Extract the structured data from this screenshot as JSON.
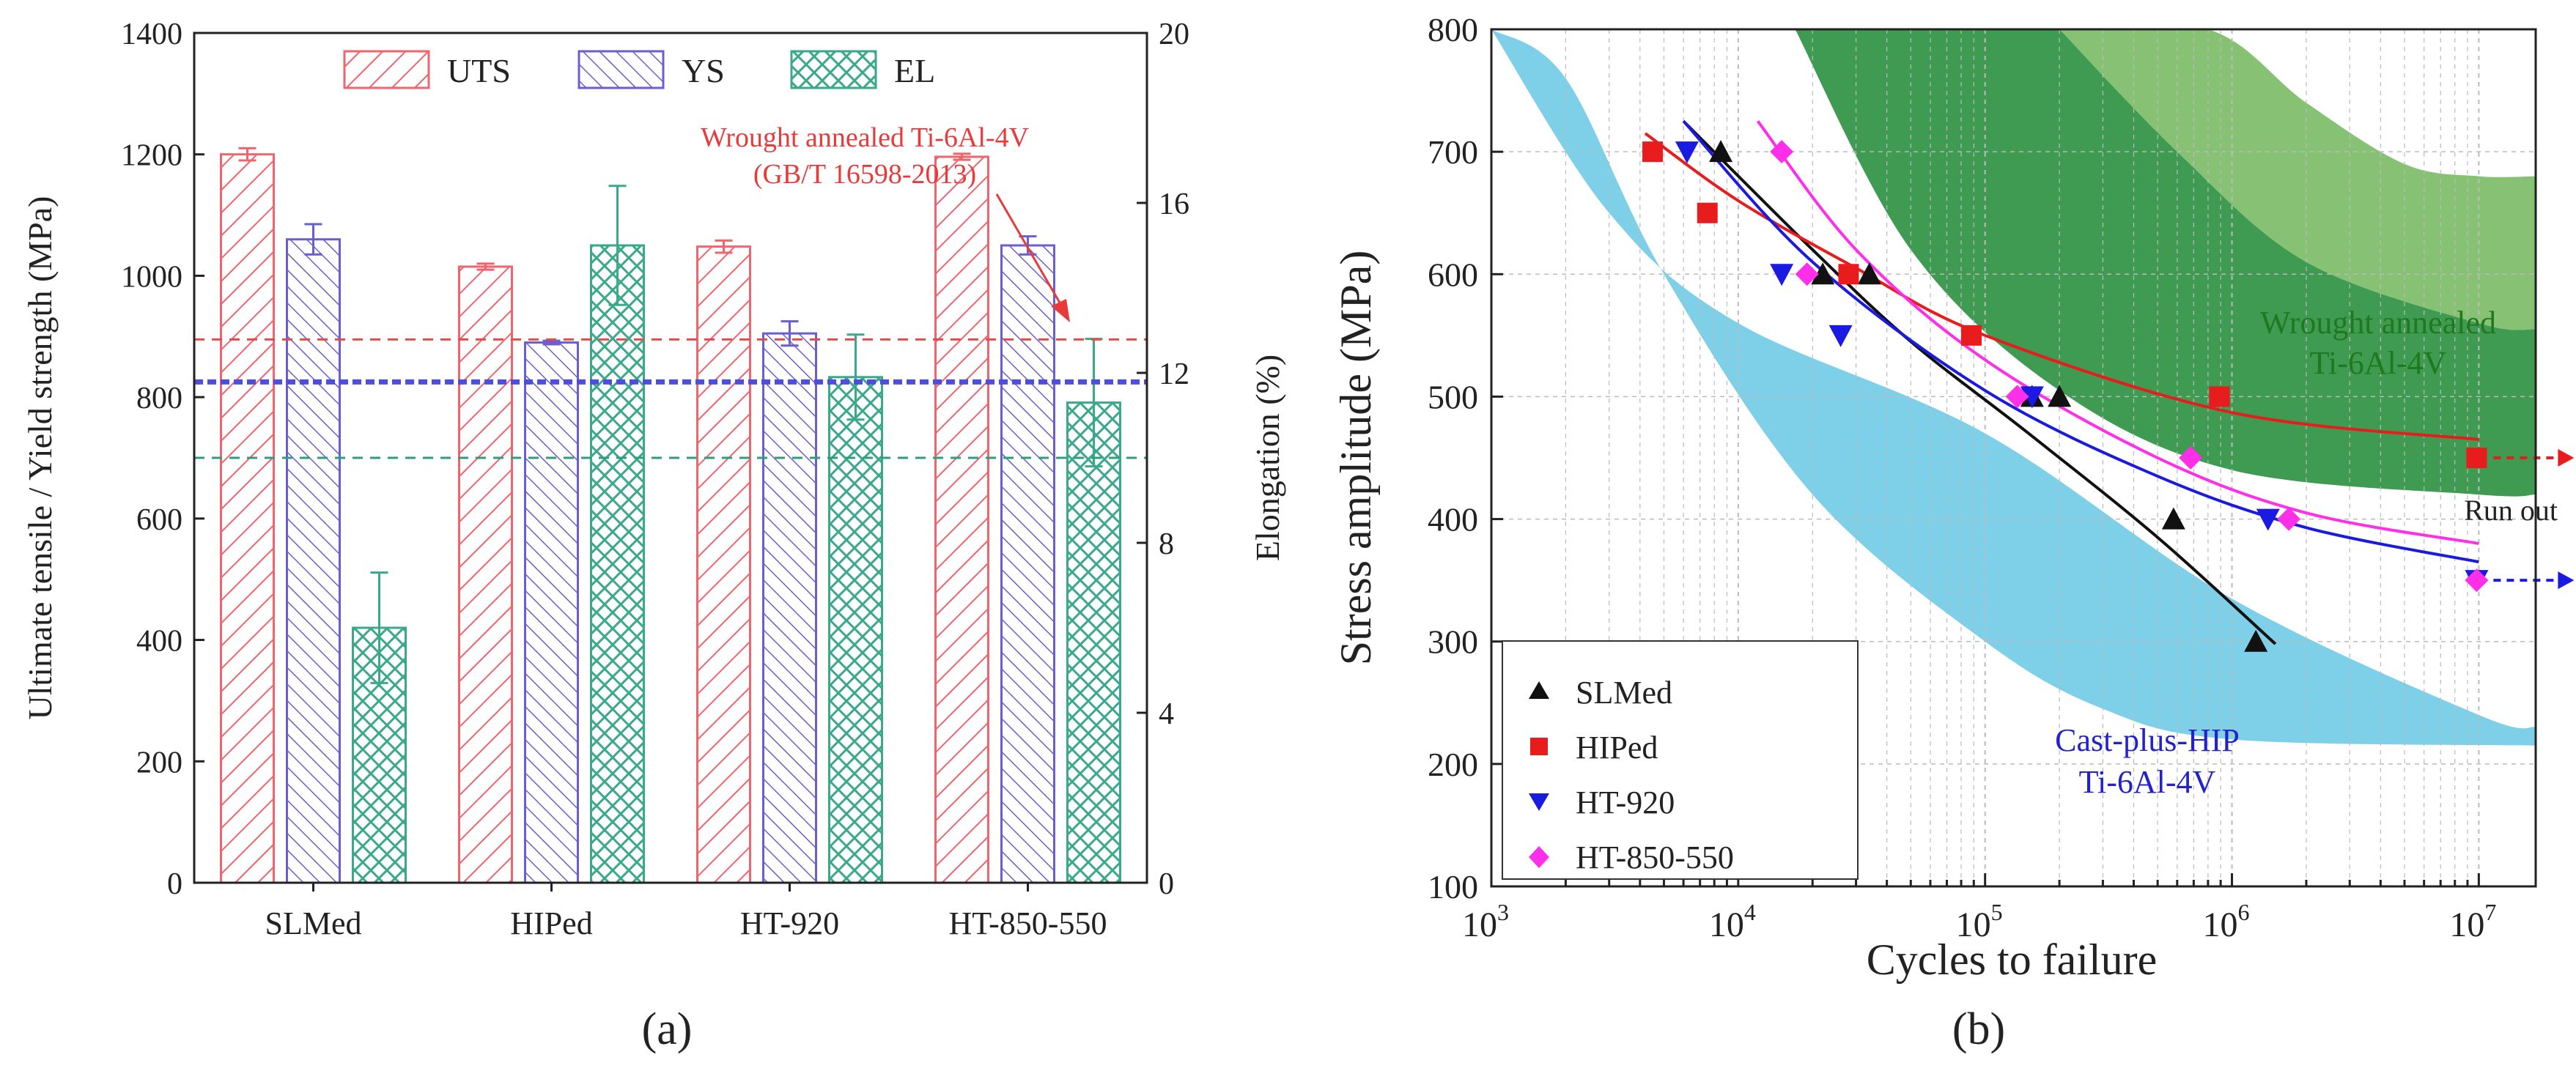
{
  "panel_labels": {
    "a": "(a)",
    "b": "(b)"
  },
  "chart_data": [
    {
      "type": "bar",
      "id": "a",
      "categories": [
        "SLMed",
        "HIPed",
        "HT-920",
        "HT-850-550"
      ],
      "series": [
        {
          "name": "UTS",
          "axis": "left",
          "color": "#f0646e",
          "values": [
            1200,
            1015,
            1048,
            1196
          ],
          "errors": [
            10,
            5,
            10,
            5
          ]
        },
        {
          "name": "YS",
          "axis": "left",
          "color": "#6a5fd0",
          "values": [
            1060,
            890,
            905,
            1050
          ],
          "errors": [
            25,
            3,
            20,
            15
          ]
        },
        {
          "name": "EL",
          "axis": "right",
          "color": "#3aa88a",
          "values": [
            6.0,
            15.0,
            11.9,
            11.3
          ],
          "errors": [
            1.3,
            1.4,
            1.0,
            1.5
          ]
        }
      ],
      "ylabel": "Ultimate tensile / Yield strength (MPa)",
      "y2label": "Elongation (%)",
      "ylim": [
        0,
        1400
      ],
      "y2lim": [
        0,
        20
      ],
      "yticks": [
        "0",
        "200",
        "400",
        "600",
        "800",
        "1000",
        "1200",
        "1400"
      ],
      "y2ticks": [
        "0",
        "4",
        "8",
        "12",
        "16",
        "20"
      ],
      "reference_lines": [
        {
          "name": "UTS ref",
          "axis": "left",
          "value": 895,
          "color": "#e84a4a"
        },
        {
          "name": "YS ref",
          "axis": "left",
          "value": 825,
          "color": "#4d4de0"
        },
        {
          "name": "EL ref",
          "axis": "right",
          "value": 10,
          "color": "#2e9e7e"
        }
      ],
      "annotation": {
        "line1": "Wrought annealed Ti-6Al-4V",
        "line2": "(GB/T 16598-2013)",
        "color": "#e83a3a"
      },
      "legend": "top"
    },
    {
      "type": "scatter",
      "id": "b",
      "xscale": "log",
      "xlim": [
        1000,
        17000000
      ],
      "ylim": [
        100,
        800
      ],
      "xlabel": "Cycles to failure",
      "ylabel": "Stress amplitude (MPa)",
      "xticks": [
        {
          "base": "10",
          "exp": "3",
          "value": 1000
        },
        {
          "base": "10",
          "exp": "4",
          "value": 10000
        },
        {
          "base": "10",
          "exp": "5",
          "value": 100000
        },
        {
          "base": "10",
          "exp": "6",
          "value": 1000000
        },
        {
          "base": "10",
          "exp": "7",
          "value": 10000000
        }
      ],
      "yticks": [
        "100",
        "200",
        "300",
        "400",
        "500",
        "600",
        "700",
        "800"
      ],
      "bands": [
        {
          "name": "Cast-plus-HIP Ti-6Al-4V",
          "color": "#7ecfe8",
          "upper": [
            [
              1000,
              800
            ],
            [
              3000,
              650
            ],
            [
              10000,
              560
            ],
            [
              100000,
              470
            ],
            [
              1000000,
              335
            ],
            [
              10000000,
              240
            ],
            [
              17000000,
              230
            ]
          ],
          "lower": [
            [
              1000,
              800
            ],
            [
              2000,
              760
            ],
            [
              5000,
              600
            ],
            [
              20000,
              420
            ],
            [
              100000,
              300
            ],
            [
              300000,
              245
            ],
            [
              1000000,
              220
            ],
            [
              17000000,
              215
            ]
          ]
        },
        {
          "name": "Wrought annealed Ti-6Al-4V (dark)",
          "color": "#3f9a52",
          "upper": [
            [
              17000,
              800
            ],
            [
              200000,
              800
            ],
            [
              600000,
              700
            ],
            [
              2000000,
              610
            ],
            [
              10000000,
              560
            ],
            [
              17000000,
              555
            ]
          ],
          "lower": [
            [
              17000,
              800
            ],
            [
              50000,
              620
            ],
            [
              200000,
              505
            ],
            [
              1000000,
              440
            ],
            [
              10000000,
              420
            ],
            [
              17000000,
              420
            ]
          ]
        },
        {
          "name": "Wrought annealed Ti-6Al-4V (light)",
          "color": "#87c274",
          "upper": [
            [
              200000,
              800
            ],
            [
              800000,
              800
            ],
            [
              2000000,
              740
            ],
            [
              5000000,
              690
            ],
            [
              10000000,
              680
            ],
            [
              17000000,
              680
            ]
          ],
          "lower": [
            [
              200000,
              800
            ],
            [
              600000,
              700
            ],
            [
              2000000,
              610
            ],
            [
              10000000,
              560
            ],
            [
              17000000,
              555
            ]
          ]
        }
      ],
      "series": [
        {
          "name": "SLMed",
          "marker": "triangle-up",
          "color": "#111111",
          "points": [
            [
              8500,
              700
            ],
            [
              22000,
              600
            ],
            [
              34000,
              600
            ],
            [
              155000,
              500
            ],
            [
              200000,
              500
            ],
            [
              580000,
              400
            ],
            [
              1250000,
              300
            ]
          ],
          "fit": [
            [
              6000,
              725
            ],
            [
              20000,
              620
            ],
            [
              50000,
              545
            ],
            [
              150000,
              470
            ],
            [
              500000,
              385
            ],
            [
              1500000,
              298
            ]
          ]
        },
        {
          "name": "HIPed",
          "marker": "square",
          "color": "#e81c1c",
          "points": [
            [
              4500,
              700
            ],
            [
              7500,
              650
            ],
            [
              28000,
              600
            ],
            [
              88000,
              550
            ],
            [
              890000,
              500
            ],
            [
              9800000,
              450
            ]
          ],
          "fit": [
            [
              4200,
              715
            ],
            [
              10000,
              660
            ],
            [
              30000,
              605
            ],
            [
              100000,
              550
            ],
            [
              1000000,
              487
            ],
            [
              10000000,
              465
            ]
          ]
        },
        {
          "name": "HT-920",
          "marker": "triangle-down",
          "color": "#1a1ae0",
          "points": [
            [
              6200,
              700
            ],
            [
              15000,
              600
            ],
            [
              26000,
              550
            ],
            [
              155000,
              500
            ],
            [
              1400000,
              400
            ],
            [
              9800000,
              350
            ]
          ],
          "fit": [
            [
              6000,
              725
            ],
            [
              20000,
              610
            ],
            [
              100000,
              505
            ],
            [
              500000,
              435
            ],
            [
              2000000,
              393
            ],
            [
              10000000,
              365
            ]
          ]
        },
        {
          "name": "HT-850-550",
          "marker": "diamond",
          "color": "#ff2ee8",
          "points": [
            [
              15000,
              700
            ],
            [
              19000,
              600
            ],
            [
              135000,
              500
            ],
            [
              680000,
              450
            ],
            [
              1700000,
              400
            ],
            [
              9800000,
              350
            ]
          ],
          "fit": [
            [
              12000,
              725
            ],
            [
              30000,
              620
            ],
            [
              100000,
              530
            ],
            [
              500000,
              450
            ],
            [
              2000000,
              405
            ],
            [
              10000000,
              380
            ]
          ]
        }
      ],
      "runout": {
        "label": "Run out",
        "points": [
          [
            10000000,
            450
          ],
          [
            10000000,
            350
          ]
        ],
        "colors": [
          "#e81c1c",
          "#1a1ae0"
        ]
      },
      "annotations": [
        {
          "line1": "Wrought annealed",
          "line2": "Ti-6Al-4V",
          "color": "#1f7a1f"
        },
        {
          "line1": "Cast-plus-HIP",
          "line2": "Ti-6Al-4V",
          "color": "#2222cc"
        }
      ],
      "legend": "bottom-left",
      "grid": true
    }
  ]
}
